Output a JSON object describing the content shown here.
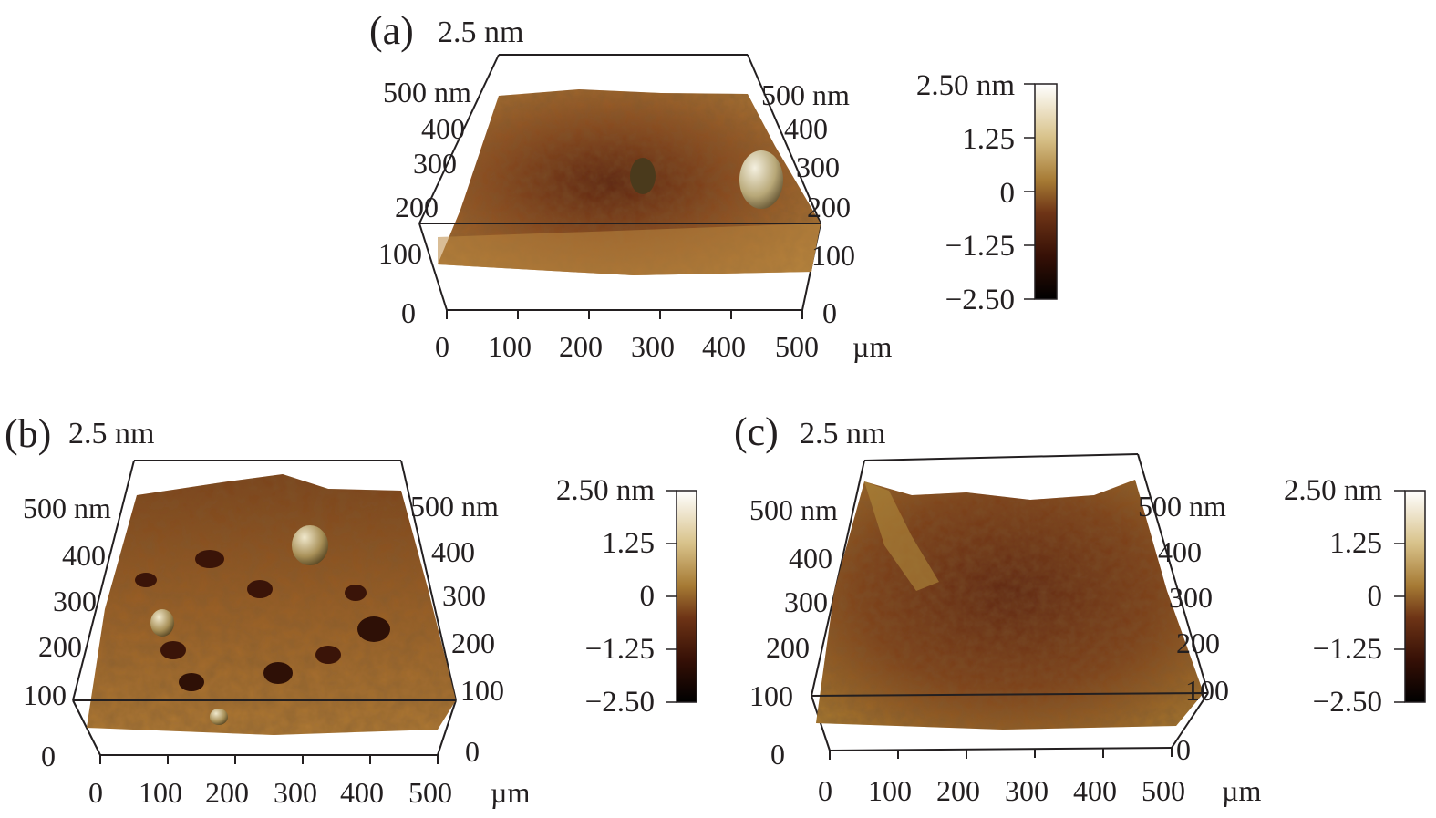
{
  "figure": {
    "panels": [
      {
        "id": "a",
        "panel_label": "(a)",
        "z_max_label": "2.5 nm",
        "y_axis_unit_label": "500 nm",
        "y_ticks": [
          "400",
          "300",
          "200",
          "100",
          "0"
        ],
        "x_ticks": [
          "0",
          "100",
          "200",
          "300",
          "400",
          "500"
        ],
        "x_unit": "µm",
        "colorbar": {
          "top_label": "2.50 nm",
          "ticks": [
            "1.25",
            "0",
            "−1.25",
            "−2.50"
          ]
        }
      },
      {
        "id": "b",
        "panel_label": "(b)",
        "z_max_label": "2.5 nm",
        "y_axis_unit_label": "500 nm",
        "y_ticks": [
          "400",
          "300",
          "200",
          "100",
          "0"
        ],
        "x_ticks": [
          "0",
          "100",
          "200",
          "300",
          "400",
          "500"
        ],
        "x_unit": "µm",
        "colorbar": {
          "top_label": "2.50 nm",
          "ticks": [
            "1.25",
            "0",
            "−1.25",
            "−2.50"
          ]
        }
      },
      {
        "id": "c",
        "panel_label": "(c)",
        "z_max_label": "2.5 nm",
        "y_axis_unit_label": "500 nm",
        "y_ticks": [
          "400",
          "300",
          "200",
          "100",
          "0"
        ],
        "x_ticks": [
          "0",
          "100",
          "200",
          "300",
          "400",
          "500"
        ],
        "x_unit": "µm",
        "colorbar": {
          "top_label": "2.50 nm",
          "ticks": [
            "1.25",
            "0",
            "−1.25",
            "−2.50"
          ]
        }
      }
    ],
    "colors": {
      "colorbar_gradient": [
        "#ffffff",
        "#e8d8a8",
        "#b08a3a",
        "#7a3a1a",
        "#3a1208",
        "#000000"
      ],
      "surface_light": "#b07a30",
      "surface_mid": "#8a4a20",
      "surface_dark": "#4a1a0a",
      "axis_line": "#231f20"
    }
  }
}
